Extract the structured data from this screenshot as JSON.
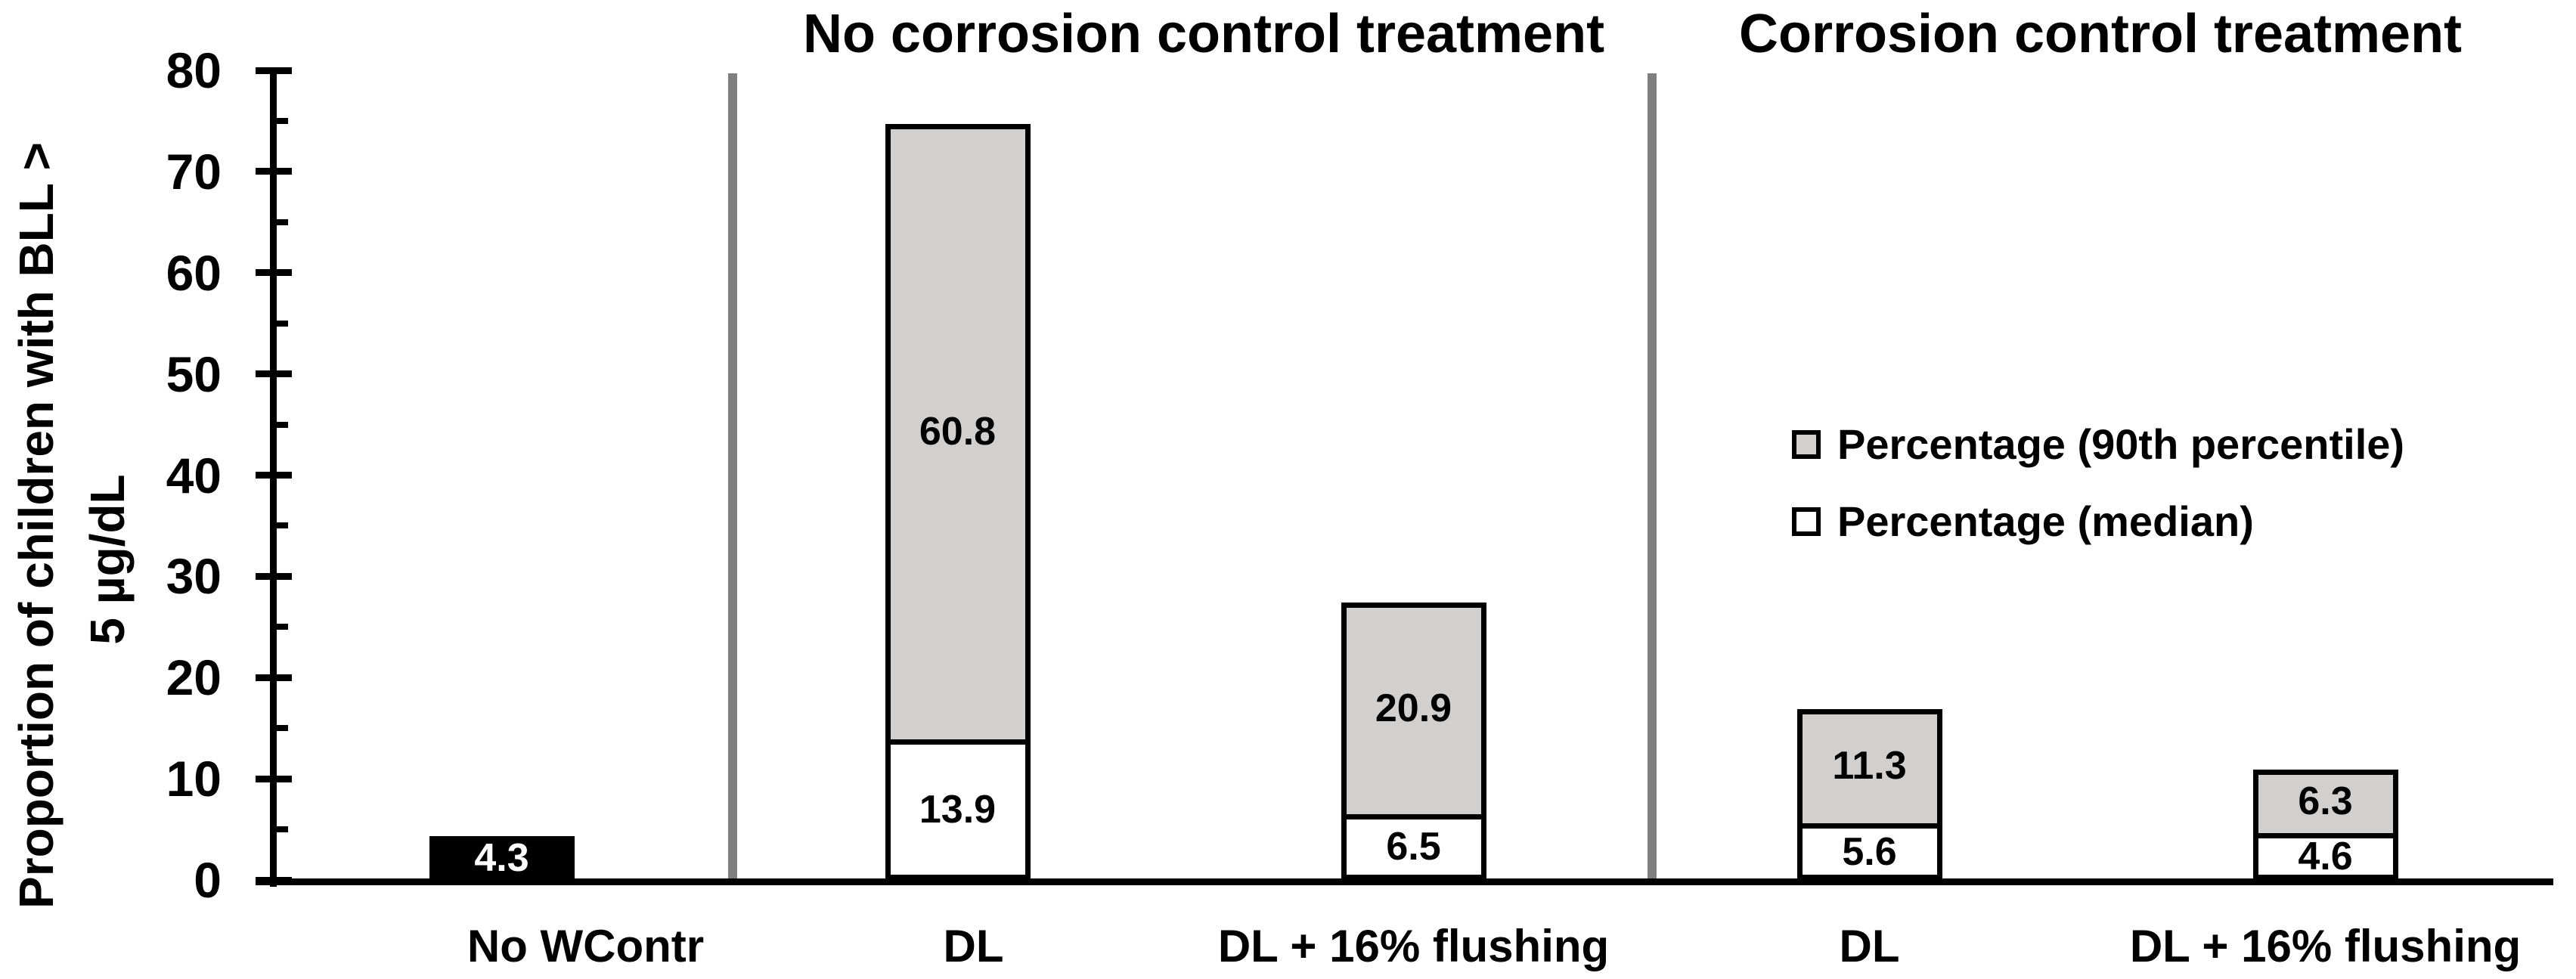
{
  "chart_data": {
    "type": "bar",
    "stacked": true,
    "title": "",
    "ylabel_line1": "Proportion of children with BLL >",
    "ylabel_line2": "5 µg/dL",
    "xlabel": "",
    "ylim": [
      0,
      80
    ],
    "ytick_step": 10,
    "yminor_step": 5,
    "yticks": [
      0,
      10,
      20,
      30,
      40,
      50,
      60,
      70,
      80
    ],
    "grid": false,
    "legend_position": "middle-right",
    "sections": [
      {
        "title": "No corrosion control treatment"
      },
      {
        "title": "Corrosion control treatment"
      }
    ],
    "categories": [
      "No WContr",
      "DL",
      "DL + 16% flushing",
      "DL",
      "DL + 16% flushing"
    ],
    "series": [
      {
        "name": "Percentage (median)",
        "fill": "#FFFFFF",
        "values": [
          null,
          13.9,
          6.5,
          5.6,
          4.6
        ]
      },
      {
        "name": "Percentage (90th percentile)",
        "fill": "#D1D0CE",
        "values": [
          null,
          60.8,
          20.9,
          11.3,
          6.3
        ]
      }
    ],
    "bars": [
      {
        "category": "No WContr",
        "segments": [
          {
            "series": "baseline",
            "value": 4.3,
            "label": "4.3",
            "fill": "#000000",
            "label_color": "#FFFFFF"
          }
        ]
      },
      {
        "category": "DL",
        "segments": [
          {
            "series": "Percentage (median)",
            "value": 13.9,
            "label": "13.9",
            "fill": "#FFFFFF",
            "label_color": "#000000"
          },
          {
            "series": "Percentage (90th percentile)",
            "value": 60.8,
            "label": "60.8",
            "fill": "#D1D0CE",
            "label_color": "#000000"
          }
        ]
      },
      {
        "category": "DL + 16% flushing",
        "segments": [
          {
            "series": "Percentage (median)",
            "value": 6.5,
            "label": "6.5",
            "fill": "#FFFFFF",
            "label_color": "#000000"
          },
          {
            "series": "Percentage (90th percentile)",
            "value": 20.9,
            "label": "20.9",
            "fill": "#D1D0CE",
            "label_color": "#000000"
          }
        ]
      },
      {
        "category": "DL",
        "segments": [
          {
            "series": "Percentage (median)",
            "value": 5.6,
            "label": "5.6",
            "fill": "#FFFFFF",
            "label_color": "#000000"
          },
          {
            "series": "Percentage (90th percentile)",
            "value": 11.3,
            "label": "11.3",
            "fill": "#D1D0CE",
            "label_color": "#000000"
          }
        ]
      },
      {
        "category": "DL + 16% flushing",
        "segments": [
          {
            "series": "Percentage (median)",
            "value": 4.6,
            "label": "4.6",
            "fill": "#FFFFFF",
            "label_color": "#000000"
          },
          {
            "series": "Percentage (90th percentile)",
            "value": 6.3,
            "label": "6.3",
            "fill": "#D1D0CE",
            "label_color": "#000000"
          }
        ]
      }
    ],
    "legend": [
      {
        "label": "Percentage (90th percentile)",
        "fill": "#D1D0CE"
      },
      {
        "label": "Percentage (median)",
        "fill": "#FFFFFF"
      }
    ],
    "colors": {
      "bar_gray": "#D1D0CE",
      "bar_white": "#FFFFFF",
      "baseline_black": "#000000",
      "divider_gray": "#808080",
      "axis_black": "#000000"
    }
  }
}
